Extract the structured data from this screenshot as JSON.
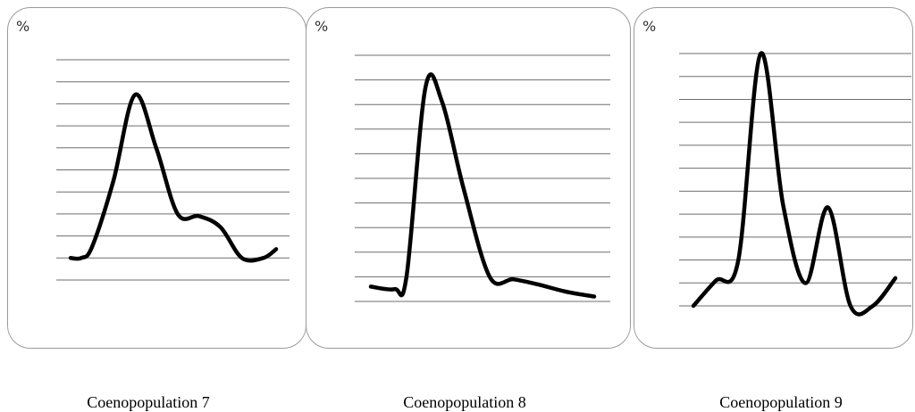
{
  "chart_data": [
    {
      "type": "line",
      "unit_label": "%",
      "caption": "Coenopopulation 7",
      "grid": true,
      "series": [
        {
          "x": [
            0,
            0.5,
            1,
            2,
            3,
            4,
            5,
            6,
            7,
            8,
            9,
            9.6
          ],
          "y": [
            1,
            1,
            1.5,
            4.5,
            8.4,
            6,
            3,
            2.9,
            2.4,
            1,
            1,
            1.4
          ]
        }
      ]
    },
    {
      "type": "line",
      "unit_label": "%",
      "caption": "Coenopopulation 8",
      "grid": true,
      "series": [
        {
          "x": [
            0,
            1,
            1.5,
            2.3,
            3,
            3.9,
            5,
            6,
            7,
            8.2,
            9.4
          ],
          "y": [
            0.6,
            0.5,
            1,
            8.7,
            8.1,
            4.6,
            1,
            0.9,
            0.7,
            0.4,
            0.2
          ]
        }
      ]
    },
    {
      "type": "line",
      "unit_label": "%",
      "caption": "Coenopopulation 9",
      "grid": true,
      "series": [
        {
          "x": [
            0,
            1,
            2,
            3,
            4,
            5,
            6,
            7,
            8,
            9
          ],
          "y": [
            0,
            1,
            1.8,
            10,
            4,
            0.9,
            3.9,
            0,
            0,
            1.1
          ]
        }
      ]
    }
  ]
}
